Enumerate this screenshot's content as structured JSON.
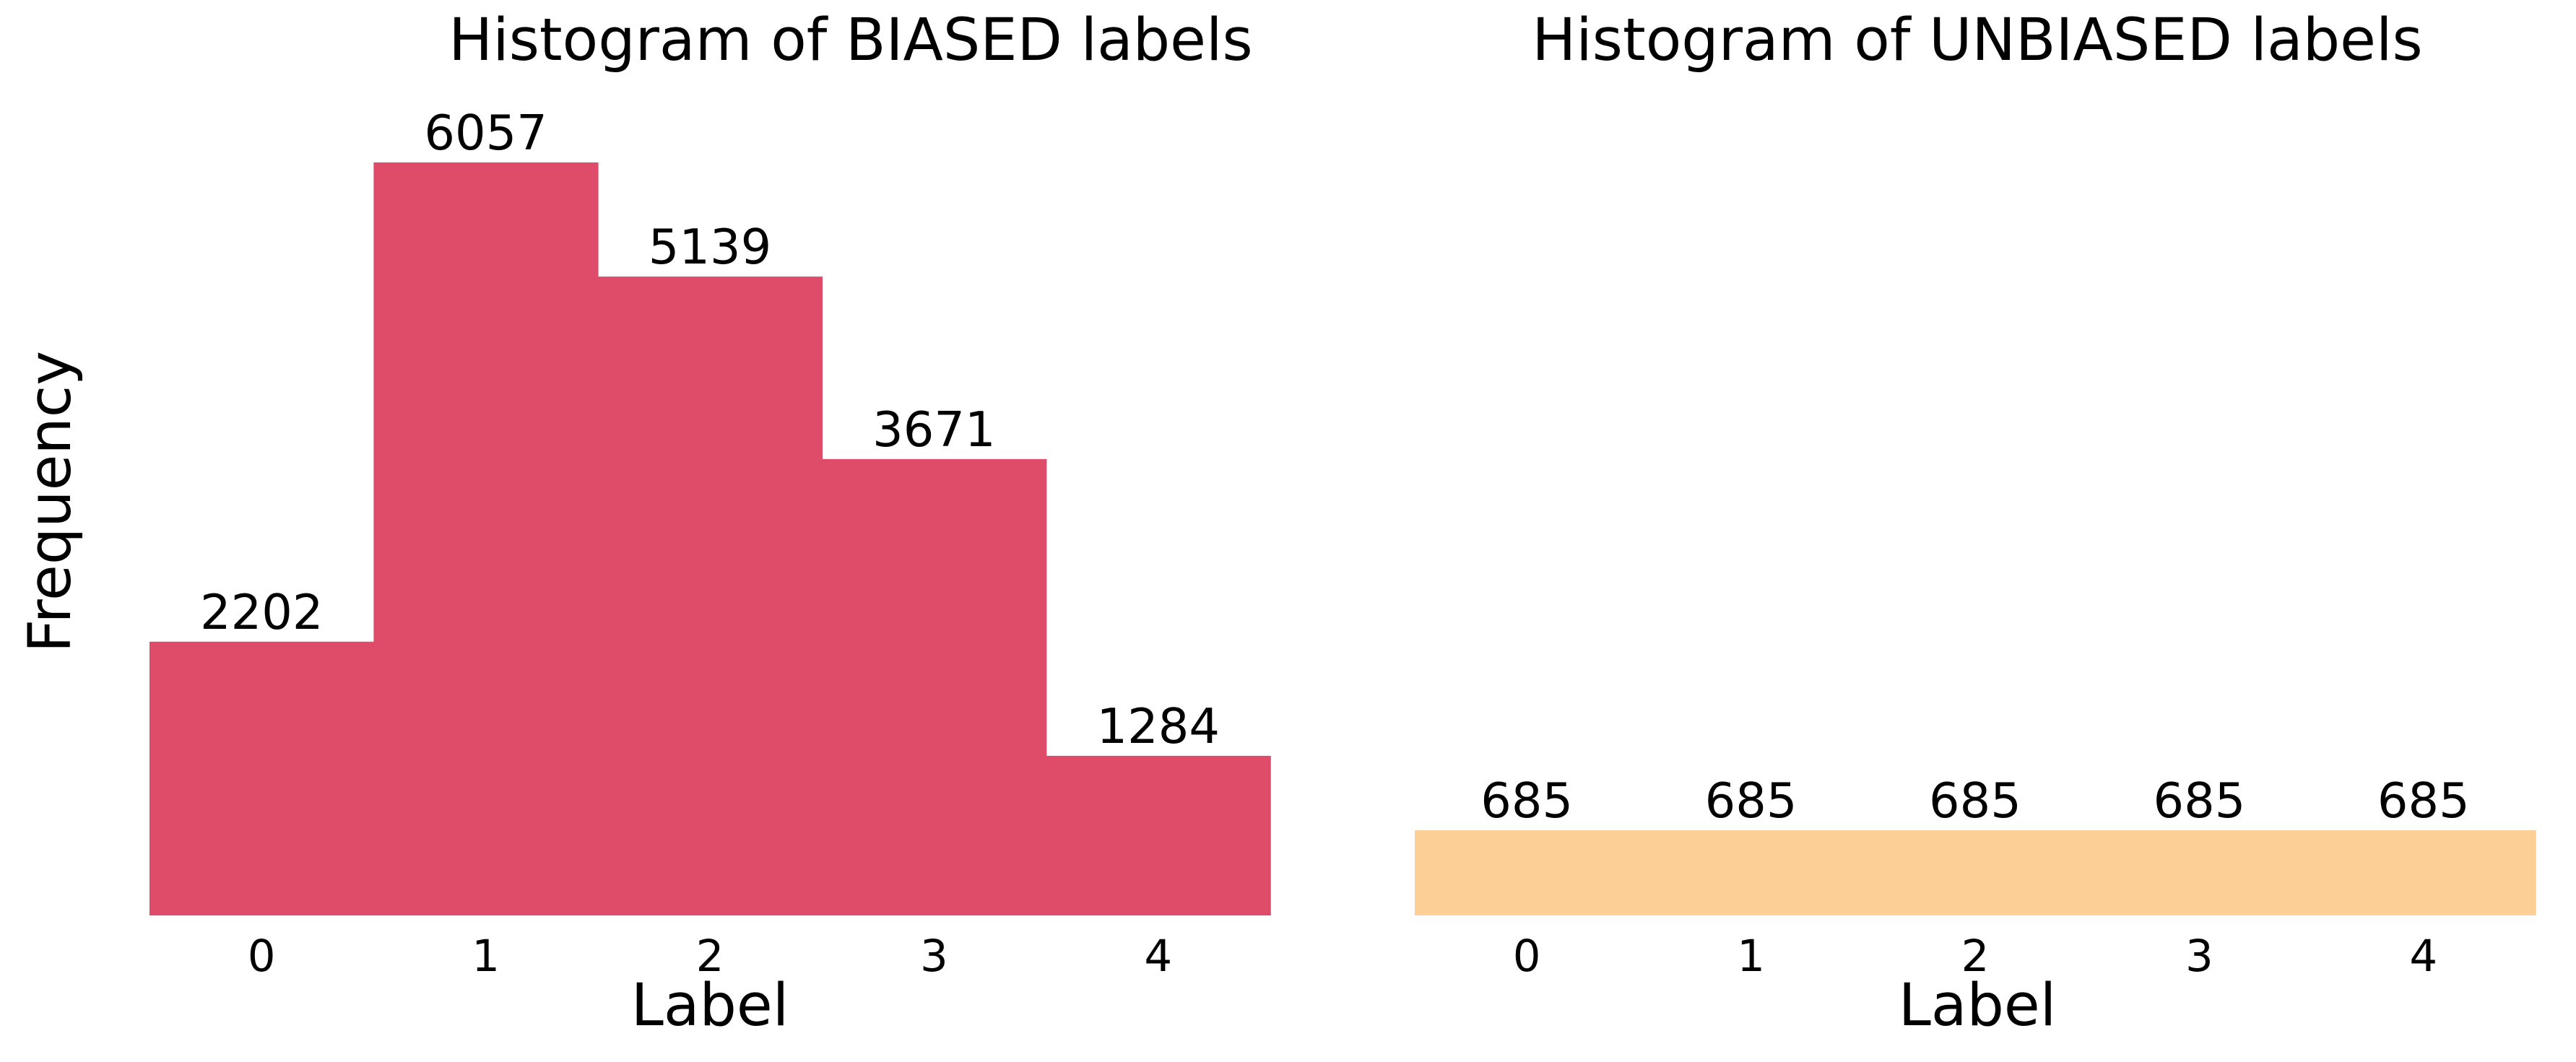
{
  "colors": {
    "biased": "#de4c69",
    "unbiased": "#fccf96",
    "text": "#000000",
    "background": "#ffffff"
  },
  "chart_data": [
    {
      "type": "bar",
      "title": "Histogram of BIASED labels",
      "xlabel": "Label",
      "ylabel": "Frequency",
      "categories": [
        "0",
        "1",
        "2",
        "3",
        "4"
      ],
      "values": [
        2202,
        6057,
        5139,
        3671,
        1284
      ],
      "data_labels": [
        "2202",
        "6057",
        "5139",
        "3671",
        "1284"
      ],
      "ylim": [
        0,
        6057
      ],
      "color": "#de4c69",
      "grid": false,
      "legend": "none"
    },
    {
      "type": "bar",
      "title": "Histogram of UNBIASED labels",
      "xlabel": "Label",
      "ylabel": "",
      "categories": [
        "0",
        "1",
        "2",
        "3",
        "4"
      ],
      "values": [
        685,
        685,
        685,
        685,
        685
      ],
      "data_labels": [
        "685",
        "685",
        "685",
        "685",
        "685"
      ],
      "ylim": [
        0,
        6057
      ],
      "color": "#fccf96",
      "grid": false,
      "legend": "none"
    }
  ]
}
